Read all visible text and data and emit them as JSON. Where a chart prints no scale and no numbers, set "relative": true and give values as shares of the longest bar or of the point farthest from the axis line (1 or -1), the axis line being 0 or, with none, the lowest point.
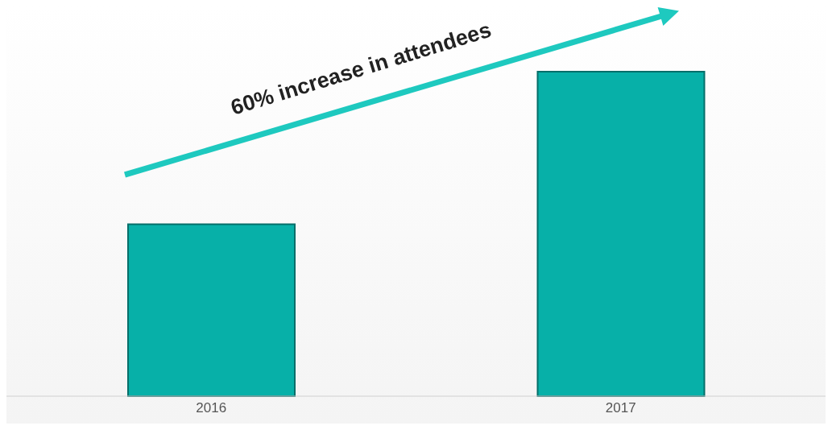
{
  "chart_data": {
    "type": "bar",
    "relative": true,
    "categories": [
      "2016",
      "2017"
    ],
    "values": [
      0.53,
      1
    ],
    "color": "#07b0a8",
    "annotations": [
      "60% increase in attendees"
    ],
    "grid": false,
    "legend": false
  }
}
